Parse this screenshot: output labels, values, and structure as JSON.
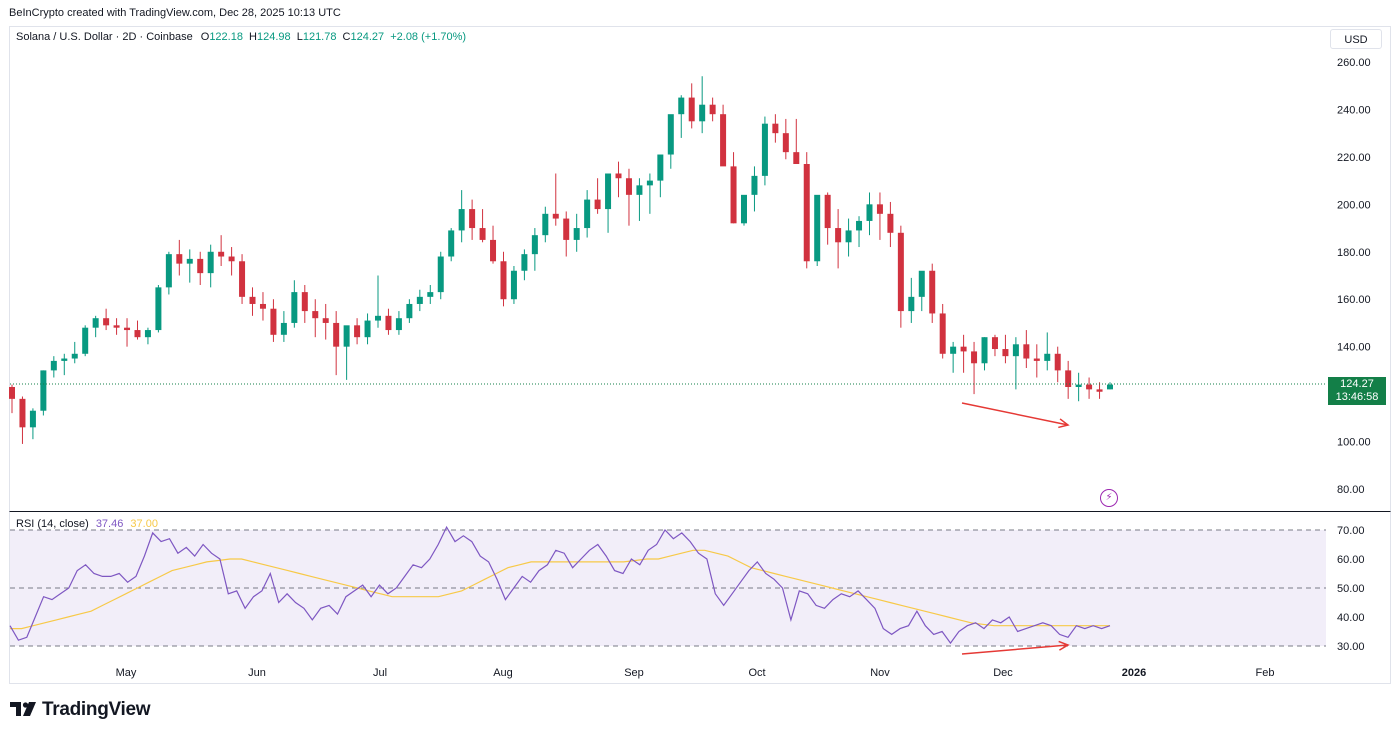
{
  "credit": "BeInCrypto created with TradingView.com, Dec 28, 2025 10:13 UTC",
  "legend": {
    "symbol": "Solana / U.S. Dollar · 2D · Coinbase",
    "o_label": "O",
    "o_value": "122.18",
    "h_label": "H",
    "h_value": "124.98",
    "l_label": "L",
    "l_value": "121.78",
    "c_label": "C",
    "c_value": "124.27",
    "change": "+2.08 (+1.70%)"
  },
  "currency_button": "USD",
  "price_tag": {
    "price": "124.27",
    "countdown": "13:46:58"
  },
  "rsi_legend": {
    "label": "RSI (14, close)",
    "rsi": "37.46",
    "ma": "37.00"
  },
  "brand": "TradingView",
  "icons": {
    "logo": "tradingview-logo-icon",
    "bolt": "lightning-icon"
  },
  "colors": {
    "up": "#089981",
    "down": "#d1323f",
    "rsi": "#7e57c2",
    "rsi_ma": "#f7c948",
    "annotation": "#e53935"
  },
  "chart_data": [
    {
      "type": "candlestick",
      "title": "Solana / U.S. Dollar · 2D · Coinbase",
      "y_ticks": [
        "260.00",
        "240.00",
        "220.00",
        "200.00",
        "180.00",
        "160.00",
        "140.00",
        "100.00",
        "80.00"
      ],
      "ylim": [
        75,
        268
      ],
      "x_ticks": [
        "May",
        "Jun",
        "Jul",
        "Aug",
        "Sep",
        "Oct",
        "Nov",
        "Dec",
        "2026",
        "Feb"
      ],
      "last_price": 124.27,
      "annotations": [
        "arrow down from Nov 20 to Dec 18 (lower price low)"
      ],
      "candles_ohlc": [
        [
          123,
          124,
          112,
          118
        ],
        [
          118,
          119,
          99,
          106
        ],
        [
          106,
          114,
          101,
          113
        ],
        [
          113,
          130,
          111,
          130
        ],
        [
          130,
          136,
          127,
          134
        ],
        [
          134,
          137,
          128,
          135
        ],
        [
          135,
          142,
          133,
          137
        ],
        [
          137,
          149,
          136,
          148
        ],
        [
          148,
          153,
          144,
          152
        ],
        [
          152,
          156,
          147,
          149
        ],
        [
          149,
          152,
          145,
          148
        ],
        [
          148,
          152,
          140,
          147
        ],
        [
          147,
          151,
          143,
          144
        ],
        [
          144,
          148,
          141,
          147
        ],
        [
          147,
          166,
          146,
          165
        ],
        [
          165,
          180,
          162,
          179
        ],
        [
          179,
          185,
          170,
          175
        ],
        [
          175,
          181,
          167,
          177
        ],
        [
          177,
          180,
          166,
          171
        ],
        [
          171,
          183,
          165,
          180
        ],
        [
          180,
          187,
          174,
          178
        ],
        [
          178,
          182,
          170,
          176
        ],
        [
          176,
          179,
          158,
          161
        ],
        [
          161,
          165,
          153,
          158
        ],
        [
          158,
          163,
          151,
          156
        ],
        [
          156,
          160,
          142,
          145
        ],
        [
          145,
          155,
          142,
          150
        ],
        [
          150,
          168,
          148,
          163
        ],
        [
          163,
          166,
          150,
          155
        ],
        [
          155,
          160,
          144,
          152
        ],
        [
          152,
          158,
          143,
          150
        ],
        [
          150,
          155,
          128,
          140
        ],
        [
          140,
          146,
          126,
          149
        ],
        [
          149,
          152,
          141,
          144
        ],
        [
          144,
          154,
          141,
          151
        ],
        [
          151,
          170,
          148,
          153
        ],
        [
          153,
          156,
          145,
          147
        ],
        [
          147,
          155,
          145,
          152
        ],
        [
          152,
          160,
          150,
          158
        ],
        [
          158,
          164,
          155,
          161
        ],
        [
          161,
          166,
          158,
          163
        ],
        [
          163,
          180,
          160,
          178
        ],
        [
          178,
          190,
          176,
          189
        ],
        [
          189,
          206,
          184,
          198
        ],
        [
          198,
          202,
          185,
          190
        ],
        [
          190,
          198,
          184,
          185
        ],
        [
          185,
          191,
          175,
          176
        ],
        [
          176,
          180,
          157,
          160
        ],
        [
          160,
          174,
          158,
          172
        ],
        [
          172,
          181,
          168,
          179
        ],
        [
          179,
          190,
          172,
          187
        ],
        [
          187,
          199,
          184,
          196
        ],
        [
          196,
          213,
          191,
          194
        ],
        [
          194,
          197,
          178,
          185
        ],
        [
          185,
          196,
          180,
          190
        ],
        [
          190,
          206,
          186,
          202
        ],
        [
          202,
          211,
          196,
          198
        ],
        [
          198,
          208,
          188,
          213
        ],
        [
          213,
          218,
          203,
          211
        ],
        [
          211,
          215,
          191,
          204
        ],
        [
          204,
          211,
          193,
          208
        ],
        [
          208,
          213,
          196,
          210
        ],
        [
          210,
          219,
          203,
          221
        ],
        [
          221,
          233,
          215,
          238
        ],
        [
          238,
          246,
          228,
          245
        ],
        [
          245,
          251,
          232,
          235
        ],
        [
          235,
          254,
          230,
          242
        ],
        [
          242,
          245,
          235,
          238
        ],
        [
          238,
          242,
          218,
          216
        ],
        [
          216,
          222,
          192,
          192
        ],
        [
          192,
          203,
          191,
          204
        ],
        [
          204,
          216,
          197,
          212
        ],
        [
          212,
          237,
          208,
          234
        ],
        [
          234,
          238,
          226,
          230
        ],
        [
          230,
          236,
          219,
          222
        ],
        [
          222,
          236,
          218,
          217
        ],
        [
          217,
          222,
          173,
          176
        ],
        [
          176,
          203,
          174,
          204
        ],
        [
          204,
          205,
          183,
          190
        ],
        [
          190,
          198,
          173,
          184
        ],
        [
          184,
          194,
          178,
          189
        ],
        [
          189,
          195,
          182,
          193
        ],
        [
          193,
          205,
          187,
          200
        ],
        [
          200,
          205,
          185,
          196
        ],
        [
          196,
          201,
          182,
          188
        ],
        [
          188,
          191,
          148,
          155
        ],
        [
          155,
          169,
          150,
          161
        ],
        [
          161,
          170,
          155,
          172
        ],
        [
          172,
          175,
          150,
          154
        ],
        [
          154,
          158,
          135,
          137
        ],
        [
          137,
          142,
          129,
          140
        ],
        [
          140,
          145,
          129,
          138
        ],
        [
          138,
          142,
          120,
          133
        ],
        [
          133,
          144,
          130,
          144
        ],
        [
          144,
          145,
          136,
          139
        ],
        [
          139,
          145,
          133,
          136
        ],
        [
          136,
          144,
          122,
          141
        ],
        [
          141,
          147,
          131,
          135
        ],
        [
          135,
          141,
          127,
          134
        ],
        [
          134,
          146,
          130,
          137
        ],
        [
          137,
          140,
          125,
          130
        ],
        [
          130,
          134,
          118,
          123
        ],
        [
          123,
          129,
          117,
          124
        ],
        [
          124,
          127,
          118,
          122
        ],
        [
          122,
          125,
          118,
          121
        ],
        [
          122,
          125,
          122,
          124
        ]
      ]
    },
    {
      "type": "line",
      "title": "RSI (14, close)",
      "y_ticks": [
        "70.00",
        "60.00",
        "50.00",
        "40.00",
        "30.00"
      ],
      "ylim": [
        27,
        73
      ],
      "band": [
        30,
        70
      ],
      "series": [
        {
          "name": "RSI",
          "values": [
            37,
            32,
            33,
            40,
            47,
            46,
            48,
            50,
            56,
            58,
            55,
            54,
            54,
            55,
            52,
            54,
            61,
            69,
            66,
            67,
            62,
            64,
            61,
            65,
            62,
            60,
            48,
            49,
            43,
            47,
            49,
            55,
            45,
            48,
            45,
            43,
            39,
            43,
            44,
            41,
            47,
            49,
            51,
            47,
            51,
            48,
            50,
            54,
            58,
            57,
            60,
            65,
            71,
            66,
            68,
            66,
            61,
            59,
            53,
            46,
            50,
            54,
            52,
            56,
            58,
            63,
            62,
            57,
            60,
            63,
            65,
            61,
            56,
            55,
            60,
            58,
            63,
            65,
            70,
            67,
            69,
            66,
            62,
            60,
            48,
            44,
            48,
            52,
            56,
            59,
            55,
            53,
            50,
            39,
            49,
            48,
            44,
            43,
            46,
            48,
            47,
            49,
            46,
            43,
            36,
            34,
            36,
            37,
            42,
            37,
            34,
            35,
            31,
            35,
            37,
            38,
            36,
            39,
            38,
            40,
            35,
            36,
            37,
            38,
            37,
            34,
            33,
            37,
            36,
            37,
            36,
            37
          ],
          "values_note_trimmed": false
        },
        {
          "name": "RSI-based MA",
          "values": [
            36,
            36,
            37,
            38,
            39,
            40,
            41,
            42,
            44,
            46,
            48,
            50,
            52,
            54,
            56,
            57,
            58,
            59,
            59.5,
            60,
            60,
            59,
            58,
            57,
            56,
            55,
            54,
            53,
            52,
            51,
            50,
            49,
            48,
            47,
            47,
            47,
            47,
            47,
            48,
            49,
            51,
            53,
            55,
            57,
            58,
            59,
            59,
            59,
            59,
            59,
            59,
            59,
            59,
            59,
            59.5,
            60,
            60,
            61,
            62,
            63,
            63,
            62,
            61,
            59,
            57,
            56,
            55,
            54,
            53,
            52,
            51,
            50,
            49,
            48,
            47,
            46,
            45,
            44,
            43,
            42,
            41,
            40,
            39,
            38,
            37.5,
            37,
            37,
            37,
            37,
            37,
            37,
            37,
            37,
            37,
            37,
            37
          ]
        }
      ],
      "annotations": [
        "arrow up from Nov 20 to Dec 18 (higher RSI low — bullish divergence)"
      ]
    }
  ]
}
